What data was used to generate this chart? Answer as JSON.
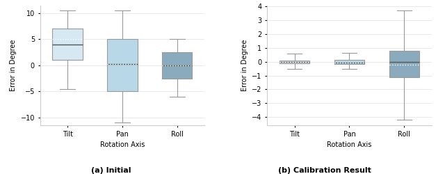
{
  "subplot_a": {
    "title": "(a) Initial",
    "xlabel": "Rotation Axis",
    "ylabel": "Error in Degree",
    "categories": [
      "Tilt",
      "Pan",
      "Roll"
    ],
    "box_colors": [
      "#d6e8f2",
      "#b8d8e8",
      "#8aabbd"
    ],
    "ylim": [
      -11.5,
      11.5
    ],
    "yticks": [
      -10,
      -5,
      0,
      5,
      10
    ],
    "boxes": [
      {
        "whislo": -4.5,
        "q1": 1.0,
        "med": 4.0,
        "q3": 7.0,
        "whishi": 10.5,
        "mean": 5.0
      },
      {
        "whislo": -11.0,
        "q1": -5.0,
        "med": 0.2,
        "q3": 5.0,
        "whishi": 10.5,
        "mean": 0.2
      },
      {
        "whislo": -6.0,
        "q1": -2.5,
        "med": 0.0,
        "q3": 2.5,
        "whishi": 5.0,
        "mean": 0.0
      }
    ]
  },
  "subplot_b": {
    "title": "(b) Calibration Result",
    "xlabel": "Rotation Axis",
    "ylabel": "Error in Degree",
    "categories": [
      "Tilt",
      "Pan",
      "Roll"
    ],
    "box_colors": [
      "#e0eef5",
      "#b8d8e8",
      "#8aabbd"
    ],
    "ylim": [
      -4.6,
      4.1
    ],
    "yticks": [
      -4,
      -3,
      -2,
      -1,
      0,
      1,
      2,
      3,
      4
    ],
    "boxes": [
      {
        "whislo": -0.5,
        "q1": -0.1,
        "med": 0.0,
        "q3": 0.1,
        "whishi": 0.6,
        "mean": 0.0
      },
      {
        "whislo": -0.5,
        "q1": -0.15,
        "med": -0.05,
        "q3": 0.15,
        "whishi": 0.65,
        "mean": -0.05
      },
      {
        "whislo": -4.2,
        "q1": -1.1,
        "med": 0.0,
        "q3": 0.8,
        "whishi": 3.7,
        "mean": -0.2
      }
    ]
  },
  "fig_background": "#ffffff",
  "ax_background": "#ffffff",
  "whisker_color": "#999999",
  "median_color": "#555555",
  "cap_color": "#999999",
  "box_edge_color": "#999999",
  "mean_color": "#ffffff",
  "grid_color": "#e0e0e0",
  "title_fontsize": 8,
  "label_fontsize": 7,
  "tick_fontsize": 7
}
